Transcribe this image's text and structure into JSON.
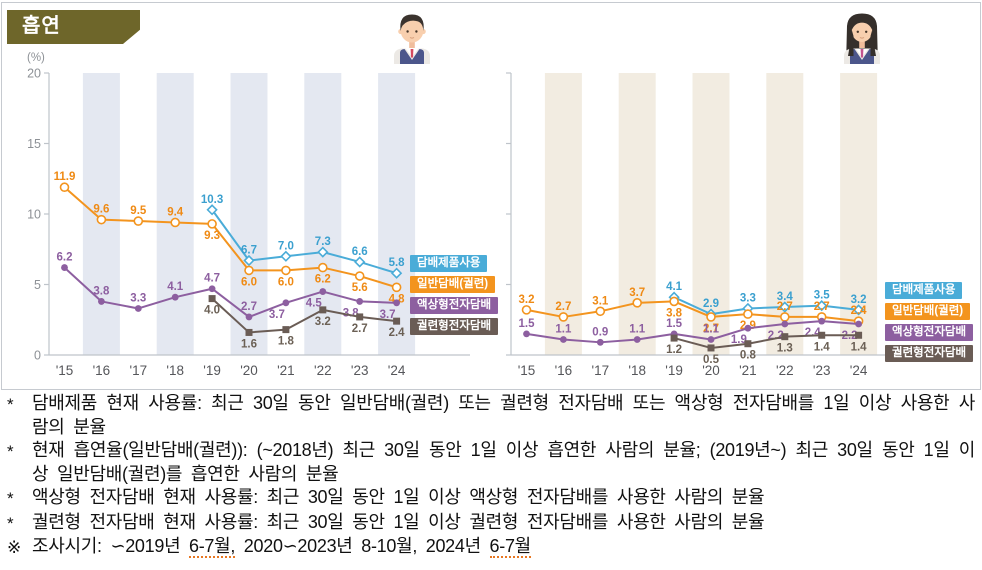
{
  "title": "흡연",
  "y_axis": {
    "unit_label": "(%)",
    "ticks": [
      0,
      5,
      10,
      15,
      20
    ]
  },
  "years": [
    "'15",
    "'16",
    "'17",
    "'18",
    "'19",
    "'20",
    "'21",
    "'22",
    "'23",
    "'24"
  ],
  "legend": [
    "담배제품사용",
    "일반담배(궐련)",
    "액상형전자담배",
    "궐련형전자담배"
  ],
  "colors": {
    "banner": "#6e662a",
    "product_use": "#4aacd8",
    "cigarette": "#f3941e",
    "liquid_ecig": "#8d5fa0",
    "heated_tobacco": "#6a5c55",
    "band_boys": "#e4e8f1",
    "band_girls": "#f2ece1"
  },
  "icons": {
    "boys_panel": "boy-avatar",
    "girls_panel": "girl-avatar"
  },
  "chart_data": [
    {
      "type": "line",
      "panel": "boys",
      "avatar_icon": "boy-avatar",
      "x": [
        "'15",
        "'16",
        "'17",
        "'18",
        "'19",
        "'20",
        "'21",
        "'22",
        "'23",
        "'24"
      ],
      "ylim": [
        0,
        20
      ],
      "y_ticks": [
        0,
        5,
        10,
        15,
        20
      ],
      "y_unit": "(%)",
      "y_tick_labels_visible": true,
      "legend_position": "right",
      "series": [
        {
          "name": "담배제품사용",
          "start": "'19",
          "values": [
            10.3,
            6.7,
            7.0,
            7.3,
            6.6,
            5.8
          ]
        },
        {
          "name": "일반담배(궐련)",
          "start": "'15",
          "values": [
            11.9,
            9.6,
            9.5,
            9.4,
            9.3,
            6.0,
            6.0,
            6.2,
            5.6,
            4.8
          ]
        },
        {
          "name": "액상형전자담배",
          "start": "'15",
          "values": [
            6.2,
            3.8,
            3.3,
            4.1,
            4.7,
            2.7,
            3.7,
            4.5,
            3.8,
            3.7
          ]
        },
        {
          "name": "궐련형전자담배",
          "start": "'19",
          "values": [
            4.0,
            1.6,
            1.8,
            3.2,
            2.7,
            2.4
          ]
        }
      ]
    },
    {
      "type": "line",
      "panel": "girls",
      "avatar_icon": "girl-avatar",
      "x": [
        "'15",
        "'16",
        "'17",
        "'18",
        "'19",
        "'20",
        "'21",
        "'22",
        "'23",
        "'24"
      ],
      "ylim": [
        0,
        20
      ],
      "y_ticks": [
        0,
        5,
        10,
        15,
        20
      ],
      "y_unit": "(%)",
      "y_tick_labels_visible": false,
      "legend_position": "right",
      "series": [
        {
          "name": "담배제품사용",
          "start": "'19",
          "values": [
            4.1,
            2.9,
            3.3,
            3.4,
            3.5,
            3.2
          ]
        },
        {
          "name": "일반담배(궐련)",
          "start": "'15",
          "values": [
            3.2,
            2.7,
            3.1,
            3.7,
            3.8,
            2.7,
            2.9,
            2.7,
            2.7,
            2.4
          ]
        },
        {
          "name": "액상형전자담배",
          "start": "'15",
          "values": [
            1.5,
            1.1,
            0.9,
            1.1,
            1.5,
            1.1,
            1.9,
            2.2,
            2.4,
            2.2
          ]
        },
        {
          "name": "궐련형전자담배",
          "start": "'19",
          "values": [
            1.2,
            0.5,
            0.8,
            1.3,
            1.4,
            1.4
          ]
        }
      ]
    }
  ],
  "footnotes": [
    {
      "bullet": "*",
      "segments": [
        {
          "t": "담배제품 현재 사용률: 최근 30일 동안 일반담배(궐련) 또는 궐련형 전자담배 또는 액상형 전자담배를 1일 이상 사용한 사람의 분율"
        }
      ]
    },
    {
      "bullet": "*",
      "segments": [
        {
          "t": "현재 흡연율(일반담배(궐련)): (~2018년) 최근 30일 동안 1일 이상 흡연한 사람의 분율; (2019년~) 최근 30일 동안 1일 이상 일반담배(궐련)를 흡연한 사람의 분율"
        }
      ]
    },
    {
      "bullet": "*",
      "segments": [
        {
          "t": "액상형 전자담배 현재 사용률: 최근 30일 동안 1일 이상 액상형 전자담배를 사용한 사람의 분율"
        }
      ]
    },
    {
      "bullet": "*",
      "segments": [
        {
          "t": "궐련형 전자담배 현재 사용률: 최근 30일 동안 1일 이상 궐련형 전자담배를 사용한 사람의 분율"
        }
      ]
    },
    {
      "bullet": "※",
      "segments": [
        {
          "t": "조사시기: ∽2019년 "
        },
        {
          "t": "6-7월,",
          "underline": true
        },
        {
          "t": " 2020∽2023년 8-10월, 2024년 "
        },
        {
          "t": "6-7월",
          "underline": true
        }
      ]
    }
  ]
}
